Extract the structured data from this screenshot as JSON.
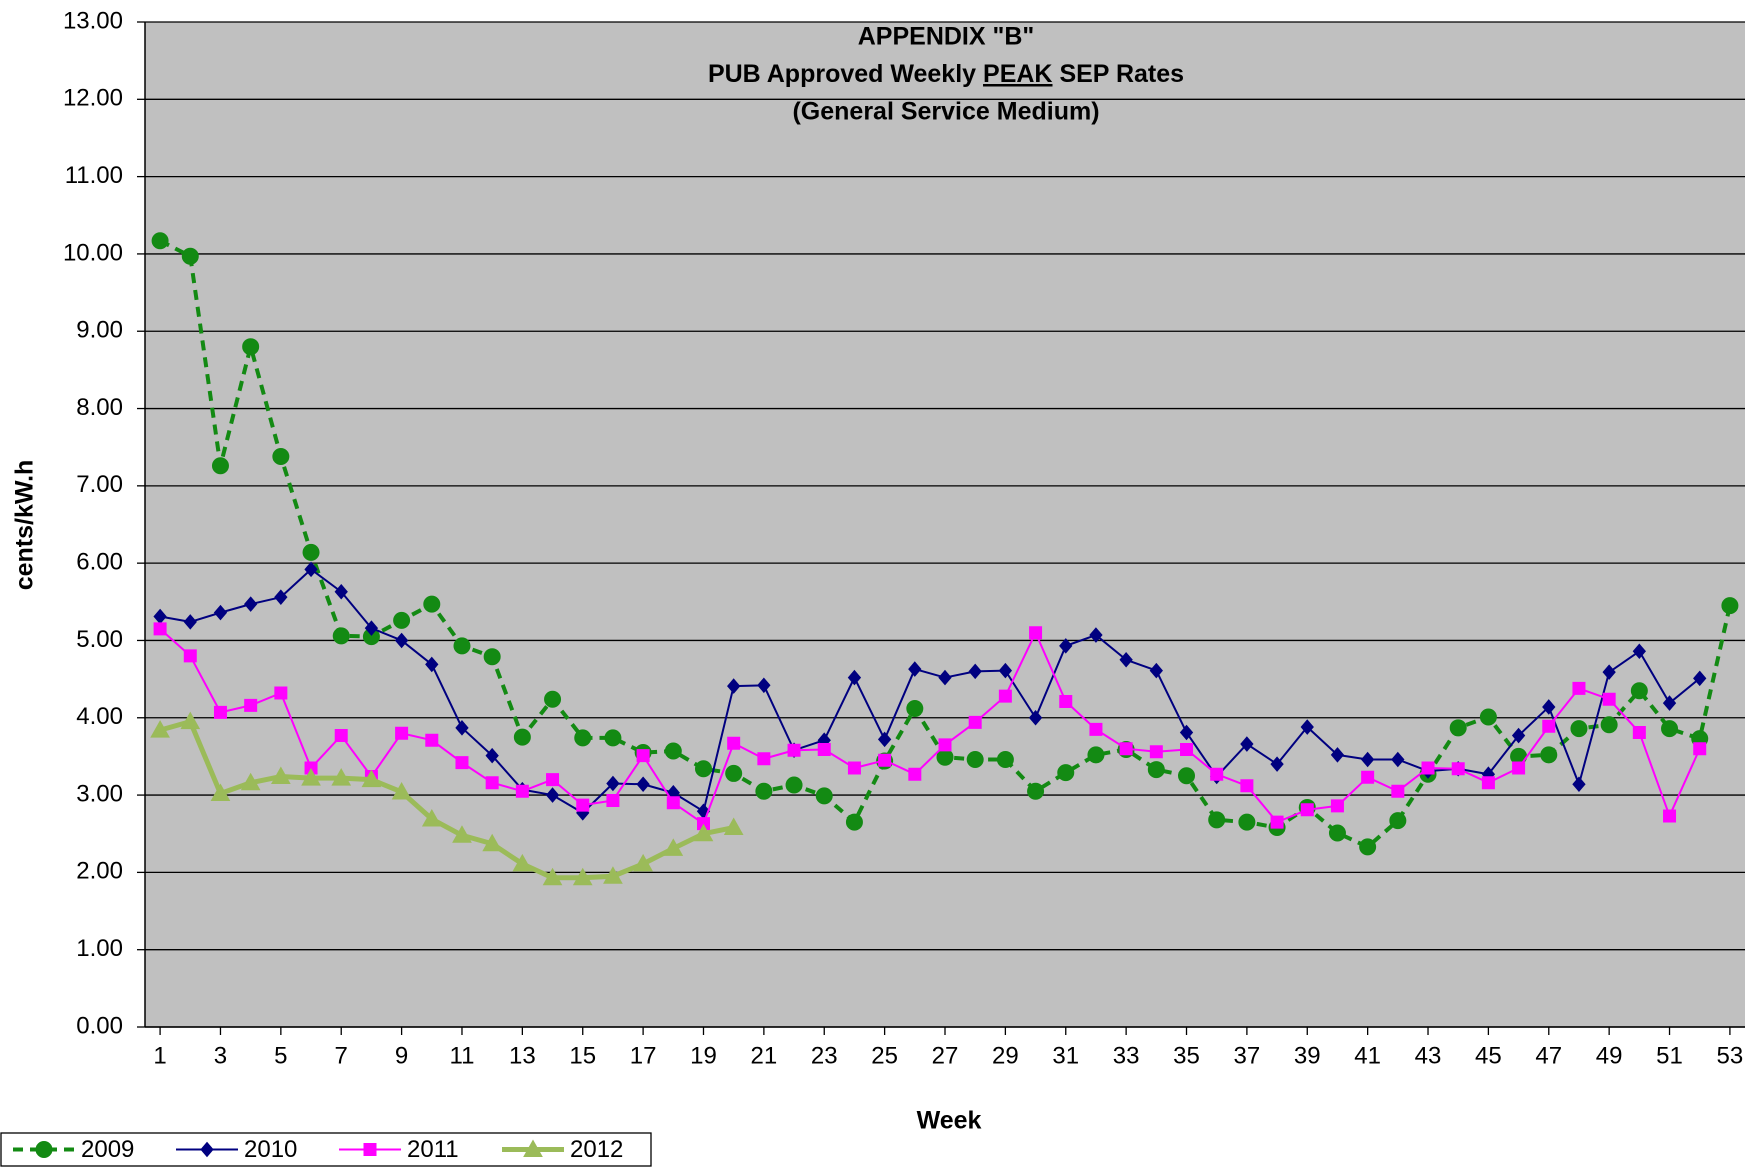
{
  "chart_data": {
    "type": "line",
    "title": [
      "APPENDIX \"B\"",
      [
        "PUB Approved Weekly",
        "PEAK",
        "SEP Rates"
      ],
      "(General Service Medium)"
    ],
    "x_label": "Week",
    "y_label": "cents/kW.h",
    "x": [
      1,
      2,
      3,
      4,
      5,
      6,
      7,
      8,
      9,
      10,
      11,
      12,
      13,
      14,
      15,
      16,
      17,
      18,
      19,
      20,
      21,
      22,
      23,
      24,
      25,
      26,
      27,
      28,
      29,
      30,
      31,
      32,
      33,
      34,
      35,
      36,
      37,
      38,
      39,
      40,
      41,
      42,
      43,
      44,
      45,
      46,
      47,
      48,
      49,
      50,
      51,
      52,
      53
    ],
    "xlim": [
      0.5,
      53.5
    ],
    "xticks": [
      1,
      3,
      5,
      7,
      9,
      11,
      13,
      15,
      17,
      19,
      21,
      23,
      25,
      27,
      29,
      31,
      33,
      35,
      37,
      39,
      41,
      43,
      45,
      47,
      49,
      51,
      53
    ],
    "ylim": [
      0,
      13
    ],
    "yticks": [
      {
        "value": 0,
        "label": "0.00"
      },
      {
        "value": 1,
        "label": "1.00"
      },
      {
        "value": 2,
        "label": "2.00"
      },
      {
        "value": 3,
        "label": "3.00"
      },
      {
        "value": 4,
        "label": "4.00"
      },
      {
        "value": 5,
        "label": "5.00"
      },
      {
        "value": 6,
        "label": "6.00"
      },
      {
        "value": 7,
        "label": "7.00"
      },
      {
        "value": 8,
        "label": "8.00"
      },
      {
        "value": 9,
        "label": "9.00"
      },
      {
        "value": 10,
        "label": "10.00"
      },
      {
        "value": 11,
        "label": "11.00"
      },
      {
        "value": 12,
        "label": "12.00"
      },
      {
        "value": 13,
        "label": "13.00"
      }
    ],
    "grid": true,
    "legend": "bottom-left",
    "series": [
      {
        "name": "2009",
        "color": "#138a13",
        "marker": "circle",
        "dashed": true,
        "width": 4,
        "values": [
          10.17,
          9.97,
          7.26,
          8.8,
          7.38,
          6.14,
          5.06,
          5.05,
          5.26,
          5.47,
          4.93,
          4.79,
          3.75,
          4.24,
          3.74,
          3.74,
          3.55,
          3.57,
          3.34,
          3.28,
          3.05,
          3.13,
          2.99,
          2.65,
          3.44,
          4.12,
          3.49,
          3.46,
          3.46,
          3.05,
          3.29,
          3.52,
          3.59,
          3.33,
          3.25,
          2.68,
          2.65,
          2.58,
          2.84,
          2.51,
          2.33,
          2.67,
          3.27,
          3.87,
          4.01,
          3.5,
          3.52,
          3.86,
          3.91,
          4.35,
          3.86,
          3.73,
          5.45
        ]
      },
      {
        "name": "2010",
        "color": "#000080",
        "marker": "diamond",
        "dashed": false,
        "width": 2,
        "values": [
          5.31,
          5.24,
          5.36,
          5.47,
          5.56,
          5.92,
          5.63,
          5.16,
          5.0,
          4.69,
          3.87,
          3.51,
          3.07,
          3.0,
          2.77,
          3.15,
          3.14,
          3.03,
          2.79,
          4.41,
          4.42,
          3.58,
          3.71,
          4.52,
          3.72,
          4.63,
          4.52,
          4.6,
          4.61,
          4.0,
          4.93,
          5.07,
          4.75,
          4.61,
          3.81,
          3.24,
          3.66,
          3.4,
          3.88,
          3.52,
          3.46,
          3.46,
          3.31,
          3.34,
          3.27,
          3.77,
          4.14,
          3.14,
          4.59,
          4.86,
          4.19,
          4.51,
          null
        ]
      },
      {
        "name": "2011",
        "color": "#ff00ff",
        "marker": "square",
        "dashed": false,
        "width": 2,
        "values": [
          5.15,
          4.8,
          4.07,
          4.16,
          4.32,
          3.35,
          3.77,
          3.24,
          3.8,
          3.71,
          3.42,
          3.16,
          3.05,
          3.2,
          2.87,
          2.93,
          3.51,
          2.9,
          2.63,
          3.67,
          3.47,
          3.58,
          3.59,
          3.35,
          3.45,
          3.27,
          3.65,
          3.94,
          4.28,
          5.1,
          4.21,
          3.85,
          3.6,
          3.56,
          3.59,
          3.27,
          3.12,
          2.65,
          2.81,
          2.86,
          3.23,
          3.05,
          3.35,
          3.34,
          3.16,
          3.35,
          3.89,
          4.38,
          4.24,
          3.81,
          2.73,
          3.6,
          null
        ]
      },
      {
        "name": "2012",
        "color": "#9bbb59",
        "marker": "triangle",
        "dashed": false,
        "width": 5,
        "values": [
          3.84,
          3.95,
          3.02,
          3.16,
          3.24,
          3.22,
          3.22,
          3.2,
          3.04,
          2.69,
          2.48,
          2.37,
          2.11,
          1.93,
          1.93,
          1.95,
          2.11,
          2.31,
          2.5,
          2.58,
          null,
          null,
          null,
          null,
          null,
          null,
          null,
          null,
          null,
          null,
          null,
          null,
          null,
          null,
          null,
          null,
          null,
          null,
          null,
          null,
          null,
          null,
          null,
          null,
          null,
          null,
          null,
          null,
          null,
          null,
          null,
          null,
          null
        ]
      }
    ]
  }
}
